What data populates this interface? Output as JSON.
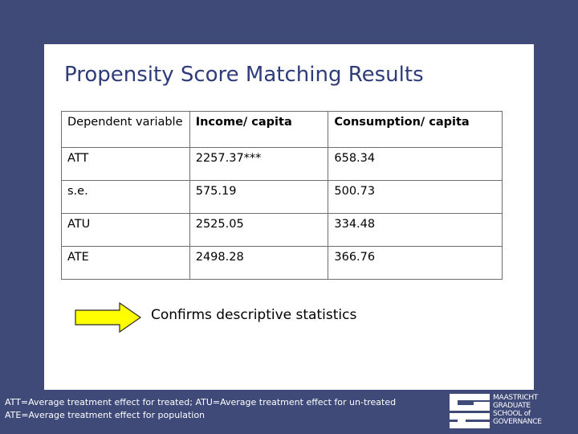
{
  "slide": {
    "title": "Propensity Score Matching Results"
  },
  "table": {
    "headers": [
      "Dependent variable",
      "Income/ capita",
      "Consumption/ capita"
    ],
    "rows": [
      [
        "ATT",
        "2257.37***",
        "658.34"
      ],
      [
        "s.e.",
        "575.19",
        "500.73"
      ],
      [
        "ATU",
        "2525.05",
        "334.48"
      ],
      [
        "ATE",
        "2498.28",
        "366.76"
      ]
    ]
  },
  "callout": {
    "text": "Confirms descriptive statistics",
    "arrow_color": "#ffff00"
  },
  "footnote": {
    "line1": "ATT=Average treatment effect for treated; ATU=Average treatment effect for un-treated",
    "line2": "ATE=Average treatment effect for population"
  },
  "logo": {
    "lines": [
      "MAASTRICHT",
      "GRADUATE",
      "SCHOOL of",
      "GOVERNANCE"
    ]
  },
  "colors": {
    "background": "#3f4a78",
    "title": "#2e3c7a",
    "card": "#ffffff"
  }
}
